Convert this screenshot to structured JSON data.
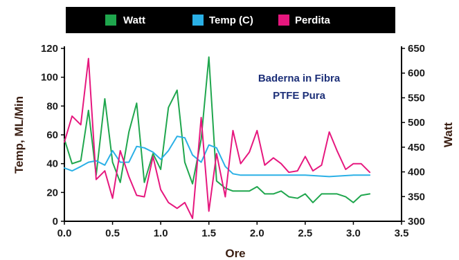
{
  "chart_data": {
    "type": "line",
    "title": "",
    "annotation": [
      "Baderna in Fibra",
      "PTFE Pura"
    ],
    "xlabel": "Ore",
    "ylabel_left": "Temp, ML/Min",
    "ylabel_right": "Watt",
    "xlim": [
      0,
      3.5
    ],
    "ylim_left": [
      0,
      120
    ],
    "ylim_right": [
      300,
      650
    ],
    "x_ticks": [
      "0.0",
      "0.5",
      "1.0",
      "1.5",
      "2.0",
      "2.5",
      "3.0",
      "3.5"
    ],
    "y_left_ticks": [
      "0",
      "20",
      "40",
      "60",
      "80",
      "100",
      "120"
    ],
    "y_right_ticks": [
      "300",
      "350",
      "400",
      "450",
      "500",
      "550",
      "600",
      "650"
    ],
    "grid": false,
    "legend_position": "top",
    "series": [
      {
        "name": "Watt",
        "axis": "left",
        "color": "#1fa64d",
        "x": [
          0,
          0.08,
          0.17,
          0.25,
          0.33,
          0.42,
          0.5,
          0.58,
          0.67,
          0.75,
          0.83,
          0.92,
          1.0,
          1.08,
          1.17,
          1.25,
          1.33,
          1.42,
          1.5,
          1.58,
          1.67,
          1.75,
          1.83,
          1.92,
          2.0,
          2.08,
          2.17,
          2.25,
          2.33,
          2.42,
          2.5,
          2.58,
          2.67,
          2.75,
          2.83,
          2.92,
          3.0,
          3.08,
          3.17
        ],
        "values": [
          57,
          40,
          42,
          77,
          32,
          85,
          41,
          27,
          62,
          82,
          27,
          47,
          36,
          79,
          91,
          41,
          26,
          57,
          114,
          28,
          23,
          21,
          21,
          21,
          24,
          19,
          19,
          21,
          17,
          16,
          19,
          13,
          19,
          19,
          19,
          17,
          13,
          18,
          19
        ]
      },
      {
        "name": "Temp (C)",
        "axis": "left",
        "color": "#2ab0e6",
        "x": [
          0,
          0.08,
          0.17,
          0.25,
          0.33,
          0.42,
          0.5,
          0.58,
          0.67,
          0.75,
          0.83,
          0.92,
          1.0,
          1.08,
          1.17,
          1.25,
          1.33,
          1.42,
          1.5,
          1.58,
          1.67,
          1.75,
          1.83,
          2.0,
          2.25,
          2.5,
          2.75,
          3.0,
          3.17
        ],
        "values": [
          37,
          35,
          38,
          41,
          42,
          39,
          49,
          41,
          41,
          52,
          51,
          48,
          43,
          49,
          59,
          58,
          46,
          41,
          53,
          51,
          38,
          33,
          32,
          32,
          32,
          32,
          31,
          32,
          32
        ]
      },
      {
        "name": "Perdita",
        "axis": "left",
        "color": "#e6177e",
        "x": [
          0,
          0.08,
          0.17,
          0.25,
          0.33,
          0.42,
          0.5,
          0.58,
          0.67,
          0.75,
          0.83,
          0.92,
          1.0,
          1.08,
          1.17,
          1.25,
          1.33,
          1.42,
          1.5,
          1.58,
          1.67,
          1.75,
          1.83,
          1.92,
          2.0,
          2.08,
          2.17,
          2.25,
          2.33,
          2.42,
          2.5,
          2.58,
          2.67,
          2.75,
          2.83,
          2.92,
          3.0,
          3.08,
          3.17
        ],
        "values": [
          55,
          73,
          67,
          113,
          29,
          35,
          16,
          49,
          31,
          18,
          17,
          45,
          22,
          13,
          9,
          13,
          2,
          72,
          7,
          47,
          17,
          63,
          40,
          48,
          63,
          39,
          44,
          40,
          34,
          35,
          45,
          35,
          39,
          62,
          49,
          36,
          40,
          40,
          34
        ]
      }
    ]
  }
}
